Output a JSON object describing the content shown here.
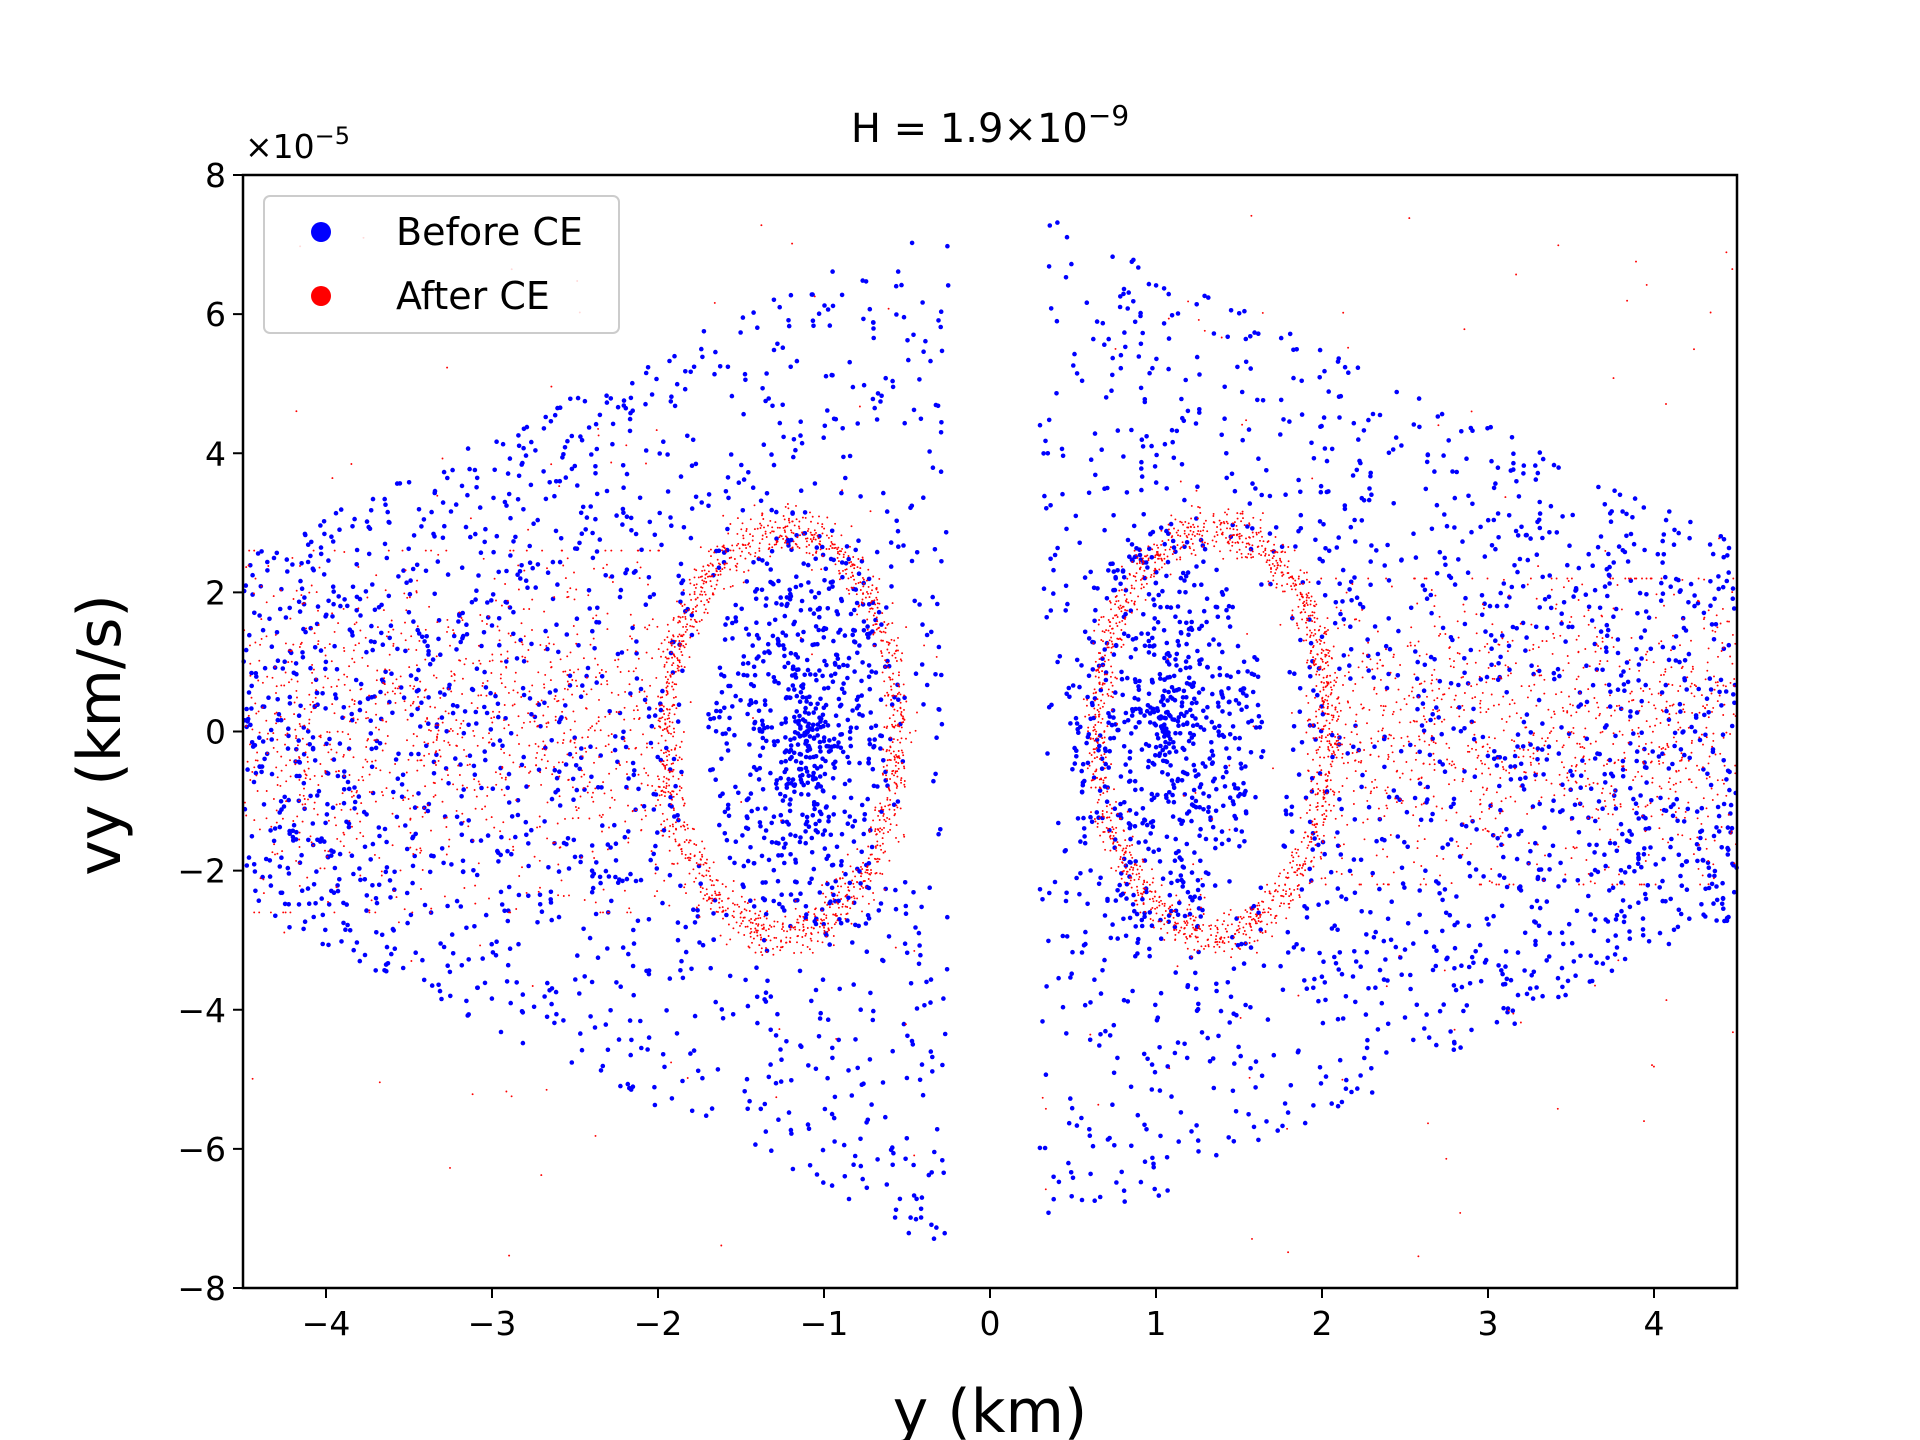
{
  "chart_data": {
    "type": "scatter",
    "title_main": "H = 1.9×10",
    "title_exp": "−9",
    "xlabel": "y (km)",
    "ylabel": "vy (km/s)",
    "y_offset_base": "×10",
    "y_offset_exp": "−5",
    "xlim": [
      -4.5,
      4.5
    ],
    "ylim": [
      -8,
      8
    ],
    "y_scale_factor": 1e-05,
    "x_ticks": [
      -4,
      -3,
      -2,
      -1,
      0,
      1,
      2,
      3,
      4
    ],
    "x_tick_labels": [
      "−4",
      "−3",
      "−2",
      "−1",
      "0",
      "1",
      "2",
      "3",
      "4"
    ],
    "y_ticks": [
      -8,
      -6,
      -4,
      -2,
      0,
      2,
      4,
      6,
      8
    ],
    "y_tick_labels": [
      "−8",
      "−6",
      "−4",
      "−2",
      "0",
      "2",
      "4",
      "6",
      "8"
    ],
    "grid": false,
    "legend_position": "top-left",
    "series": [
      {
        "name": "Before CE",
        "color": "#0000ff",
        "marker_size": "large",
        "regions": [
          {
            "shape": "island",
            "center": [
              -1.1,
              0
            ],
            "radius_x": 0.6,
            "radius_y": 3.0,
            "count": 700
          },
          {
            "shape": "island",
            "center": [
              1.05,
              0
            ],
            "radius_x": 0.6,
            "radius_y": 3.0,
            "count": 700
          },
          {
            "shape": "wedge",
            "x_range": [
              -4.5,
              -0.25
            ],
            "vy_max_at_inner": 7.5,
            "vy_max_at_outer": 2.5,
            "count": 1500
          },
          {
            "shape": "wedge",
            "x_range": [
              0.3,
              4.5
            ],
            "vy_max_at_inner": 7.5,
            "vy_max_at_outer": 2.7,
            "count": 1500
          }
        ]
      },
      {
        "name": "After CE",
        "color": "#ff0000",
        "marker_size": "small",
        "regions": [
          {
            "shape": "ring",
            "center": [
              -1.25,
              0
            ],
            "radius_x": 0.7,
            "radius_y": 2.9,
            "count": 1300
          },
          {
            "shape": "ring",
            "center": [
              1.35,
              0
            ],
            "radius_x": 0.7,
            "radius_y": 2.9,
            "count": 1300
          },
          {
            "shape": "band",
            "x_range": [
              -4.5,
              -1.9
            ],
            "vy_range": [
              -2.6,
              2.6
            ],
            "count": 1100
          },
          {
            "shape": "band",
            "x_range": [
              1.9,
              4.5
            ],
            "vy_range": [
              -2.2,
              2.2
            ],
            "count": 1100
          },
          {
            "shape": "sparse",
            "count": 180
          }
        ]
      }
    ]
  }
}
